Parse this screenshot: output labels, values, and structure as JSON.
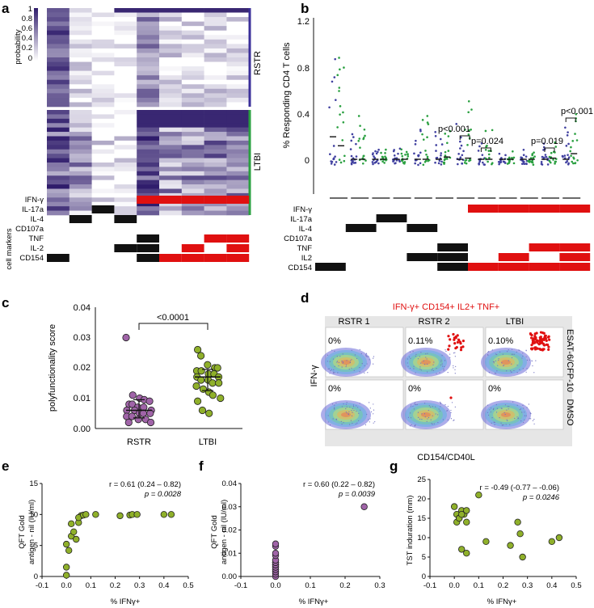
{
  "panel_labels": {
    "a": "a",
    "b": "b",
    "c": "c",
    "d": "d",
    "e": "e",
    "f": "f",
    "g": "g"
  },
  "colors": {
    "purple": "#3b1f7a",
    "green": "#2aa02a",
    "red": "#e01010",
    "rstr_dot": "#a064a8",
    "ltbi_dot": "#8fb02a",
    "heat_lo": "#ffffff",
    "heat_hi": "#2f1c6b",
    "bar_rstr": "#4040a0",
    "bar_ltbi": "#2aa040"
  },
  "panel_a": {
    "colorbar_title": "probability",
    "colorbar_ticks": [
      "1",
      "0.8",
      "0.6",
      "0.4",
      "0.2",
      "0"
    ],
    "group_labels": {
      "rstr": "RSTR",
      "ltbi": "LTBI"
    },
    "markers_title": "cell markers",
    "markers": [
      "IFN-γ",
      "IL-17a",
      "IL-4",
      "CD107a",
      "TNF",
      "IL-2",
      "CD154"
    ],
    "rstr_rows": 22,
    "ltbi_rows": 24
  },
  "panel_b": {
    "y_title": "% Responding CD4 T cells",
    "y_ticks": [
      "1.2",
      "0.8",
      "0.4",
      "0"
    ],
    "ylim": [
      -0.3,
      1.25
    ],
    "pvalues": [
      {
        "group": 7,
        "text": "p<0.001"
      },
      {
        "group": 8,
        "text": "p=0.024"
      },
      {
        "group": 11,
        "text": "p=0.019"
      },
      {
        "group": 12,
        "text": "p<0.001"
      }
    ],
    "markers": [
      "IFN-γ",
      "IL-17a",
      "IL-4",
      "CD107a",
      "TNF",
      "IL2",
      "CD154"
    ],
    "groups": 12
  },
  "panel_c": {
    "y_title": "polyfunctionality score",
    "y_ticks": [
      "0.04",
      "0.03",
      "0.02",
      "0.01",
      "0.00"
    ],
    "x_labels": [
      "RSTR",
      "LTBI"
    ],
    "pvalue": "<0.0001",
    "chart_data": {
      "type": "scatter",
      "ylim": [
        0,
        0.04
      ],
      "series": [
        {
          "name": "RSTR",
          "median": 0.006,
          "q1": 0.0035,
          "q3": 0.0095,
          "values": [
            0.03,
            0.011,
            0.01,
            0.0095,
            0.009,
            0.008,
            0.008,
            0.007,
            0.007,
            0.006,
            0.006,
            0.006,
            0.005,
            0.005,
            0.005,
            0.004,
            0.004,
            0.003,
            0.003,
            0.002,
            0.002
          ]
        },
        {
          "name": "LTBI",
          "median": 0.017,
          "q1": 0.0125,
          "q3": 0.0195,
          "values": [
            0.026,
            0.024,
            0.021,
            0.02,
            0.02,
            0.019,
            0.019,
            0.018,
            0.018,
            0.017,
            0.017,
            0.016,
            0.016,
            0.015,
            0.015,
            0.014,
            0.013,
            0.012,
            0.011,
            0.01,
            0.009,
            0.006,
            0.005
          ]
        }
      ]
    }
  },
  "panel_d": {
    "title": "IFN-γ+ CD154+ IL2+ TNF+",
    "columns": [
      "RSTR 1",
      "RSTR 2",
      "LTBI"
    ],
    "rows": [
      "ESAT-6/CFP-10",
      "DMSO"
    ],
    "percents": [
      [
        "0%",
        "0.11%",
        "0.10%"
      ],
      [
        "0%",
        "0%",
        "0%"
      ]
    ],
    "x_title": "CD154/CD40L",
    "y_title": "IFN-γ"
  },
  "panel_e": {
    "y_title_1": "QFT Gold",
    "y_title_2": "antigen - nil (IU/ml)",
    "x_title": "% IFNγ+",
    "stat_r": "r = 0.61 (0.24 – 0.82)",
    "stat_p": "p = 0.0028",
    "x_ticks": [
      "-0.1",
      "0.0",
      "0.1",
      "0.2",
      "0.3",
      "0.4",
      "0.5"
    ],
    "y_ticks": [
      "15",
      "10",
      "5",
      "0"
    ],
    "chart_data": {
      "type": "scatter",
      "xlim": [
        -0.1,
        0.5
      ],
      "ylim": [
        0,
        15
      ],
      "x": [
        0.0,
        0.0,
        0.01,
        0.0,
        0.02,
        0.03,
        0.02,
        0.05,
        0.06,
        0.05,
        0.07,
        0.08,
        0.04,
        0.12,
        0.22,
        0.26,
        0.27,
        0.29,
        0.4,
        0.43
      ],
      "y": [
        0.2,
        1.5,
        4.2,
        5.2,
        6.5,
        7.2,
        8.5,
        8.7,
        9.8,
        9.5,
        9.9,
        10,
        6.0,
        10,
        9.8,
        9.9,
        10,
        10,
        10,
        10
      ]
    }
  },
  "panel_f": {
    "y_title_1": "QFT Gold",
    "y_title_2": "antigen - nil (IU/ml)",
    "x_title": "% IFNγ+",
    "stat_r": "r = 0.60 (0.22 – 0.82)",
    "stat_p": "p = 0.0039",
    "x_ticks": [
      "-0.1",
      "0.0",
      "0.1",
      "0.2",
      "0.3"
    ],
    "y_ticks": [
      "0.04",
      "0.03",
      "0.02",
      "0.01",
      "0.00"
    ],
    "chart_data": {
      "type": "scatter",
      "xlim": [
        -0.1,
        0.3
      ],
      "ylim": [
        0,
        0.04
      ],
      "x": [
        0.0,
        0.0,
        0.0,
        0.0,
        0.0,
        0.0,
        0.0,
        0.0,
        0.0,
        0.0,
        0.0,
        0.0,
        0.0,
        0.0,
        0.0,
        0.0,
        0.0,
        0.0,
        0.0,
        0.0,
        0.255
      ],
      "y": [
        0.0,
        0.001,
        0.002,
        0.002,
        0.003,
        0.003,
        0.004,
        0.004,
        0.005,
        0.005,
        0.005,
        0.006,
        0.006,
        0.006,
        0.007,
        0.007,
        0.009,
        0.01,
        0.013,
        0.014,
        0.03
      ]
    }
  },
  "panel_g": {
    "y_title": "TST induration (mm)",
    "x_title": "% IFNγ+",
    "stat_r": "r = -0.49 (-0.77 – -0.06)",
    "stat_p": "p = 0.0246",
    "x_ticks": [
      "-0.1",
      "0.0",
      "0.1",
      "0.2",
      "0.3",
      "0.4",
      "0.5"
    ],
    "y_ticks": [
      "25",
      "20",
      "15",
      "10",
      "5",
      "0"
    ],
    "chart_data": {
      "type": "scatter",
      "xlim": [
        -0.1,
        0.5
      ],
      "ylim": [
        0,
        25
      ],
      "x": [
        0.0,
        0.01,
        0.02,
        0.03,
        0.04,
        0.05,
        0.01,
        0.02,
        0.03,
        0.05,
        0.1,
        0.03,
        0.05,
        0.13,
        0.23,
        0.26,
        0.27,
        0.28,
        0.4,
        0.43
      ],
      "y": [
        18,
        16,
        15,
        17,
        16,
        14,
        14,
        15,
        16,
        17,
        21,
        7,
        6,
        9,
        8,
        14,
        11,
        5,
        9,
        10
      ]
    }
  }
}
